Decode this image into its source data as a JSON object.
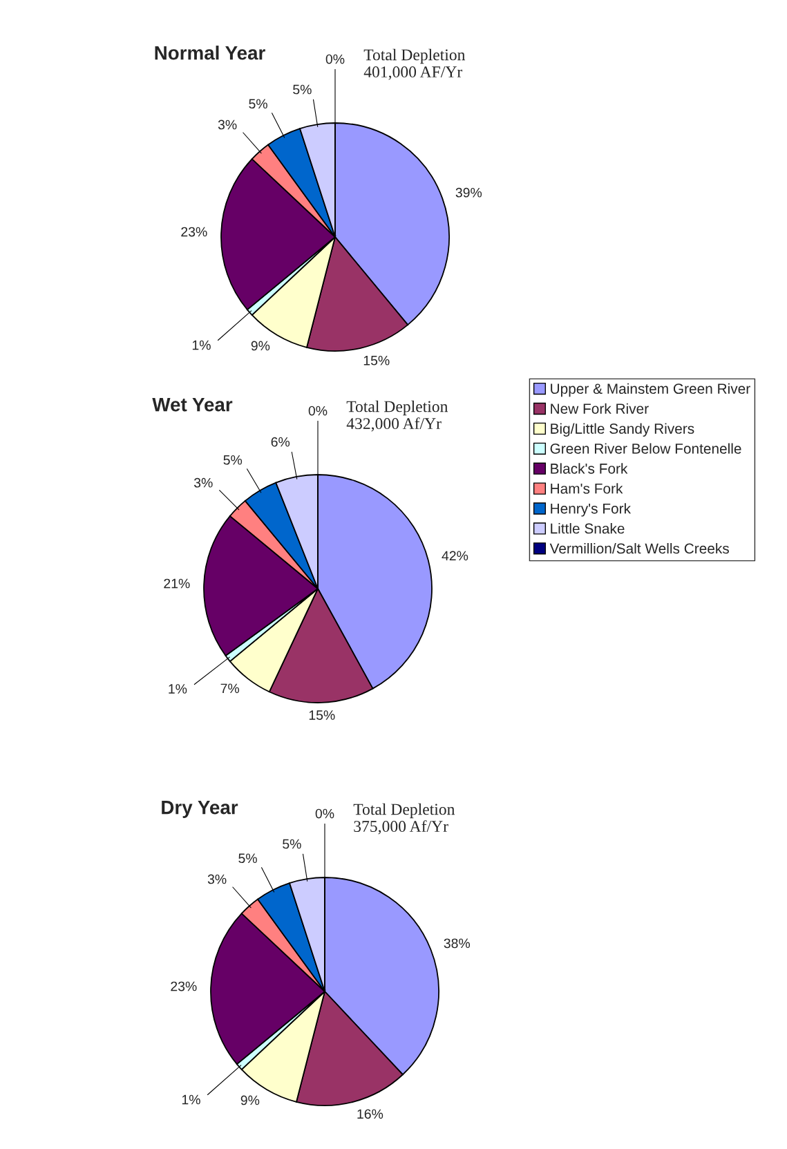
{
  "chart_data": [
    {
      "type": "pie",
      "title": "Normal Year",
      "annotations": [
        "Total Depletion\n401,000 AF/Yr"
      ],
      "legend": "right",
      "categories": [
        "Upper & Mainstem Green River",
        "New Fork River",
        "Big/Little Sandy Rivers",
        "Green River Below Fontenelle",
        "Black's Fork",
        "Ham's Fork",
        "Henry's Fork",
        "Little Snake",
        "Vermillion/Salt Wells Creeks"
      ],
      "values": [
        39,
        15,
        9,
        1,
        23,
        3,
        5,
        5,
        0
      ],
      "value_labels": [
        "39%",
        "15%",
        "9%",
        "1%",
        "23%",
        "3%",
        "5%",
        "5%",
        "0%"
      ],
      "colors": [
        "#9999ff",
        "#993366",
        "#ffffcc",
        "#ccffff",
        "#660066",
        "#ff8080",
        "#0066cc",
        "#ccccff",
        "#000080"
      ]
    },
    {
      "type": "pie",
      "title": "Wet Year",
      "annotations": [
        "Total Depletion\n432,000 Af/Yr"
      ],
      "categories": [
        null,
        null,
        null,
        null,
        null,
        null,
        null,
        null,
        null
      ],
      "values": [
        42,
        15,
        7,
        1,
        21,
        3,
        5,
        6,
        0
      ],
      "value_labels": [
        "42%",
        "15%",
        "7%",
        "1%",
        "21%",
        "3%",
        "5%",
        "6%",
        "0%"
      ],
      "colors": [
        "#9999ff",
        "#993366",
        "#ffffcc",
        "#ccffff",
        "#660066",
        "#ff8080",
        "#0066cc",
        "#ccccff",
        "#000080"
      ]
    },
    {
      "type": "pie",
      "title": "Dry Year",
      "annotations": [
        "Total Depletion\n375,000 Af/Yr"
      ],
      "categories": [
        null,
        null,
        null,
        null,
        null,
        null,
        null,
        null,
        null
      ],
      "values": [
        38,
        16,
        9,
        1,
        23,
        3,
        5,
        5,
        0
      ],
      "value_labels": [
        "38%",
        "16%",
        "9%",
        "1%",
        "23%",
        "3%",
        "5%",
        "5%",
        "0%"
      ],
      "colors": [
        "#9999ff",
        "#993366",
        "#ffffcc",
        "#ccffff",
        "#660066",
        "#ff8080",
        "#0066cc",
        "#ccccff",
        "#000080"
      ]
    }
  ]
}
